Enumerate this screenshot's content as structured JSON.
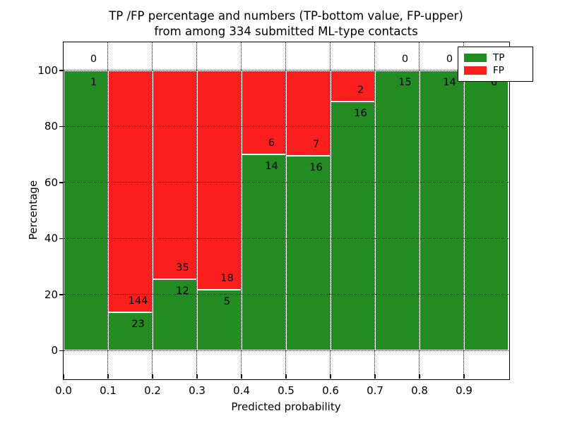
{
  "figure": {
    "title_line1": "TP /FP percentage and numbers (TP-bottom value, FP-upper)",
    "title_line2": "from among 334 submitted ML-type contacts"
  },
  "chart_data": {
    "type": "bar",
    "subtype": "stacked-percentage-histogram",
    "title": "TP /FP percentage and numbers (TP-bottom value, FP-upper) from among 334 submitted ML-type contacts",
    "xlabel": "Predicted probability",
    "ylabel": "Percentage",
    "total_contacts": 334,
    "xlim": [
      0.0,
      1.0
    ],
    "ylim": [
      -10,
      110
    ],
    "grid": "dotted black, both axes",
    "bin_width": 0.1,
    "bin_starts": [
      0.0,
      0.1,
      0.2,
      0.3,
      0.4,
      0.5,
      0.6,
      0.7,
      0.8,
      0.9
    ],
    "x_tick_labels": [
      "0.0",
      "0.1",
      "0.2",
      "0.3",
      "0.4",
      "0.5",
      "0.6",
      "0.7",
      "0.8",
      "0.9"
    ],
    "y_tick_values": [
      0,
      20,
      40,
      60,
      80,
      100
    ],
    "y_tick_labels": [
      "0",
      "20",
      "40",
      "60",
      "80",
      "100"
    ],
    "series": [
      {
        "name": "TP",
        "color": "#228b22",
        "values": [
          1,
          23,
          12,
          5,
          14,
          16,
          16,
          15,
          14,
          6
        ]
      },
      {
        "name": "FP",
        "color": "#fb1e1e",
        "values": [
          0,
          144,
          35,
          18,
          6,
          7,
          2,
          0,
          0,
          0
        ]
      }
    ],
    "tp_percent_of_bin": [
      100.0,
      13.8,
      25.5,
      21.7,
      70.0,
      69.6,
      88.9,
      100.0,
      100.0,
      100.0
    ],
    "legend": {
      "position": "upper right",
      "entries": [
        "TP",
        "FP"
      ]
    }
  }
}
